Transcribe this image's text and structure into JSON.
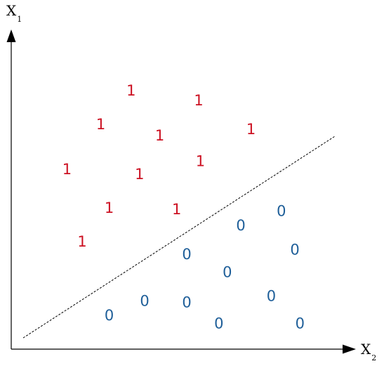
{
  "diagram": {
    "y_axis": {
      "letter": "X",
      "subscript": "1"
    },
    "x_axis": {
      "letter": "X",
      "subscript": "2"
    },
    "boundary": {
      "style": "dashed"
    },
    "class_1": {
      "label": "1",
      "color": "#cc1122",
      "points": [
        {
          "x": 0.355,
          "y": 0.805
        },
        {
          "x": 0.555,
          "y": 0.775
        },
        {
          "x": 0.265,
          "y": 0.7
        },
        {
          "x": 0.44,
          "y": 0.665
        },
        {
          "x": 0.71,
          "y": 0.685
        },
        {
          "x": 0.165,
          "y": 0.56
        },
        {
          "x": 0.38,
          "y": 0.545
        },
        {
          "x": 0.56,
          "y": 0.585
        },
        {
          "x": 0.29,
          "y": 0.44
        },
        {
          "x": 0.49,
          "y": 0.435
        },
        {
          "x": 0.21,
          "y": 0.335
        }
      ]
    },
    "class_0": {
      "label": "0",
      "color": "#1f5f99",
      "points": [
        {
          "x": 0.8,
          "y": 0.43
        },
        {
          "x": 0.68,
          "y": 0.385
        },
        {
          "x": 0.84,
          "y": 0.31
        },
        {
          "x": 0.52,
          "y": 0.295
        },
        {
          "x": 0.64,
          "y": 0.24
        },
        {
          "x": 0.395,
          "y": 0.15
        },
        {
          "x": 0.29,
          "y": 0.105
        },
        {
          "x": 0.52,
          "y": 0.145
        },
        {
          "x": 0.77,
          "y": 0.165
        },
        {
          "x": 0.615,
          "y": 0.08
        },
        {
          "x": 0.855,
          "y": 0.08
        }
      ]
    }
  }
}
